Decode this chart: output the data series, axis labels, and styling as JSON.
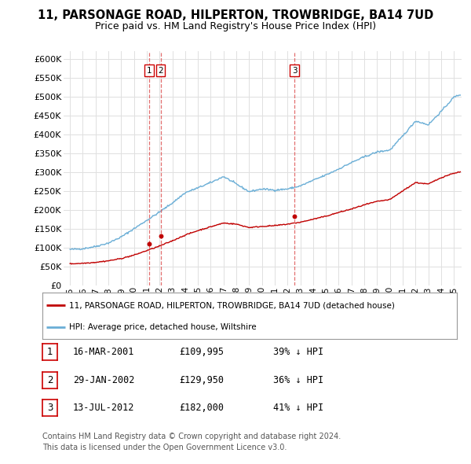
{
  "title1": "11, PARSONAGE ROAD, HILPERTON, TROWBRIDGE, BA14 7UD",
  "title2": "Price paid vs. HM Land Registry's House Price Index (HPI)",
  "ylabel_ticks": [
    "£0",
    "£50K",
    "£100K",
    "£150K",
    "£200K",
    "£250K",
    "£300K",
    "£350K",
    "£400K",
    "£450K",
    "£500K",
    "£550K",
    "£600K"
  ],
  "ytick_values": [
    0,
    50000,
    100000,
    150000,
    200000,
    250000,
    300000,
    350000,
    400000,
    450000,
    500000,
    550000,
    600000
  ],
  "ylim": [
    0,
    620000
  ],
  "xlim_start": 1994.5,
  "xlim_end": 2025.6,
  "xtick_labels": [
    "1995",
    "1996",
    "1997",
    "1998",
    "1999",
    "2000",
    "2001",
    "2002",
    "2003",
    "2004",
    "2005",
    "2006",
    "2007",
    "2008",
    "2009",
    "2010",
    "2011",
    "2012",
    "2013",
    "2014",
    "2015",
    "2016",
    "2017",
    "2018",
    "2019",
    "2020",
    "2021",
    "2022",
    "2023",
    "2024",
    "2025"
  ],
  "hpi_color": "#6aaed6",
  "price_color": "#c00000",
  "vline_color": "#e06060",
  "transaction_dates": [
    2001.21,
    2002.08,
    2012.54
  ],
  "transaction_prices": [
    109995,
    129950,
    182000
  ],
  "transaction_labels": [
    "1",
    "2",
    "3"
  ],
  "legend_label_red": "11, PARSONAGE ROAD, HILPERTON, TROWBRIDGE, BA14 7UD (detached house)",
  "legend_label_blue": "HPI: Average price, detached house, Wiltshire",
  "table_data": [
    [
      "1",
      "16-MAR-2001",
      "£109,995",
      "39% ↓ HPI"
    ],
    [
      "2",
      "29-JAN-2002",
      "£129,950",
      "36% ↓ HPI"
    ],
    [
      "3",
      "13-JUL-2012",
      "£182,000",
      "41% ↓ HPI"
    ]
  ],
  "footer_text": "Contains HM Land Registry data © Crown copyright and database right 2024.\nThis data is licensed under the Open Government Licence v3.0.",
  "bg_color": "#ffffff",
  "grid_color": "#e0e0e0"
}
